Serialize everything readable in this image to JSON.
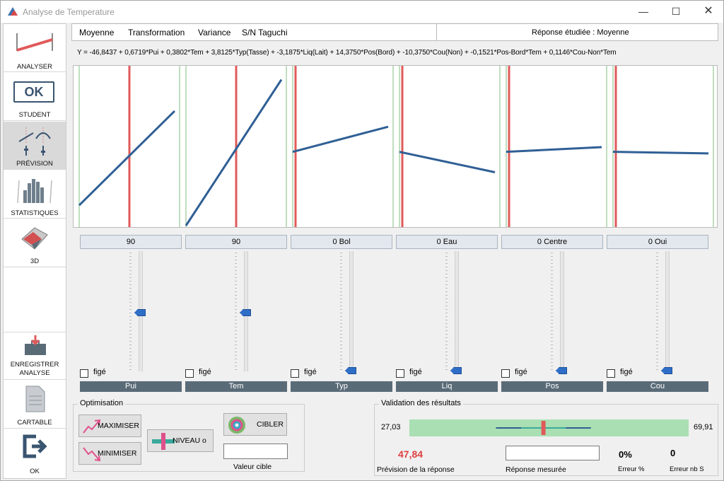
{
  "window": {
    "title": "Analyse de Temperature",
    "min_glyph": "—",
    "max_glyph": "☐",
    "close_glyph": "✕"
  },
  "sidebar": {
    "items": [
      {
        "label": "ANALYSER",
        "icon": "analyser-icon"
      },
      {
        "label": "STUDENT",
        "icon": "ok-icon",
        "icon_text": "OK"
      },
      {
        "label": "PRÉVISION",
        "icon": "prevision-icon",
        "active": true
      },
      {
        "label": "STATISTIQUES",
        "icon": "statistics-icon"
      },
      {
        "label": "3D",
        "icon": "3d-icon"
      },
      {
        "label": "ENREGISTRER ANALYSE",
        "label_line1": "ENREGISTRER",
        "label_line2": "ANALYSE",
        "icon": "save-icon"
      },
      {
        "label": "CARTABLE",
        "icon": "document-icon"
      },
      {
        "label": "OK",
        "icon": "exit-icon"
      }
    ]
  },
  "menu": {
    "items": [
      "Moyenne",
      "Transformation",
      "Variance",
      "S/N Taguchi"
    ],
    "response_label": "Réponse étudiée : Moyenne"
  },
  "equation": "Y = -46,8437 + 0,6719*Pui + 0,3802*Tem + 3,8125*Typ(Tasse) + -3,1875*Liq(Lait) + 14,3750*Pos(Bord) + -10,3750*Cou(Non) + -0,1521*Pos-Bord*Tem + 0,1146*Cou-Non*Tem",
  "factors": [
    {
      "name": "Pui",
      "value": "90",
      "fige": "figé",
      "slider_fraction": 0.5,
      "effect_start": 0.13,
      "effect_end": 0.73
    },
    {
      "name": "Tem",
      "value": "90",
      "fige": "figé",
      "slider_fraction": 0.5,
      "effect_start": 0.0,
      "effect_end": 0.93
    },
    {
      "name": "Typ",
      "value": "0 Bol",
      "fige": "figé",
      "slider_fraction": 0.0,
      "effect_start": 0.47,
      "effect_end": 0.63
    },
    {
      "name": "Liq",
      "value": "0 Eau",
      "fige": "figé",
      "slider_fraction": 0.0,
      "effect_start": 0.47,
      "effect_end": 0.34
    },
    {
      "name": "Pos",
      "value": "0 Centre",
      "fige": "figé",
      "slider_fraction": 0.0,
      "effect_start": 0.47,
      "effect_end": 0.5
    },
    {
      "name": "Cou",
      "value": "0 Oui",
      "fige": "figé",
      "slider_fraction": 0.0,
      "effect_start": 0.47,
      "effect_end": 0.46
    }
  ],
  "optimisation": {
    "title": "Optimisation",
    "maximiser": "MAXIMISER",
    "minimiser": "MINIMISER",
    "niveau": "NIVEAU o",
    "cibler": "CIBLER",
    "target_label": "Valeur cible",
    "target_value": ""
  },
  "validation": {
    "title": "Validation des résultats",
    "min": "27,03",
    "max": "69,91",
    "prediction": "47,84",
    "prediction_label": "Prévision de la réponse",
    "measured_label": "Réponse mesurée",
    "measured_value": "",
    "error_pct": "0%",
    "error_pct_label": "Erreur %",
    "error_nb": "0",
    "error_nb_label": "Erreur nb S",
    "prediction_fraction": 0.48,
    "interval_low_fraction": 0.31,
    "interval_high_fraction": 0.65
  },
  "colors": {
    "effect_line": "#2f5f95",
    "red_marker": "#e05a5a",
    "green_border": "#7fbf7f",
    "band": "#a9dfb3",
    "prediction_text": "#e04040"
  }
}
